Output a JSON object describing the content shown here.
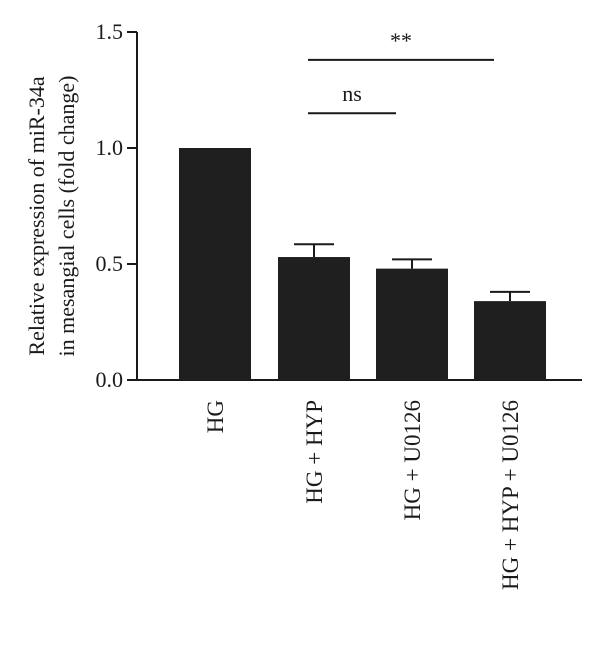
{
  "chart_data": {
    "type": "bar",
    "title": "",
    "ylabel_lines": [
      "Relative expression of miR-34a",
      "in mesangial cells (fold change)"
    ],
    "xlabel": "",
    "ylim": [
      0,
      1.5
    ],
    "yticks": [
      0.0,
      0.5,
      1.0,
      1.5
    ],
    "ytick_labels": [
      "0.0",
      "0.5",
      "1.0",
      "1.5"
    ],
    "categories": [
      "HG",
      "HG + HYP",
      "HG + U0126",
      "HG + HYP + U0126"
    ],
    "values": [
      1.0,
      0.53,
      0.48,
      0.34
    ],
    "errors": [
      0.0,
      0.055,
      0.04,
      0.04
    ],
    "bar_color": "#1f1f1f",
    "significance": [
      {
        "from": 1,
        "to": 2,
        "label": "ns",
        "y": 1.15
      },
      {
        "from": 1,
        "to": 3,
        "label": "**",
        "y": 1.38
      }
    ],
    "grid": false,
    "legend": "none"
  }
}
